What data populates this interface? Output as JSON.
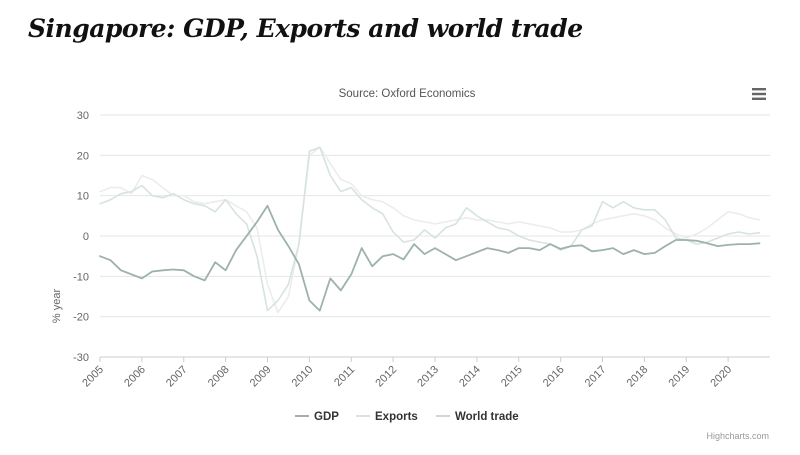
{
  "title": "Singapore: GDP, Exports and world trade",
  "menu_icon": "hamburger-menu-icon",
  "credit": "Highcharts.com",
  "colors": {
    "gdp": "#9db1ad",
    "exports": "#d6e3e1",
    "world_trade": "#ececec",
    "grid": "#e6e6e6",
    "axis_text": "#666666"
  },
  "chart_data": {
    "type": "line",
    "title": "",
    "subtitle": "Source: Oxford Economics",
    "xlabel": "",
    "ylabel": "% year",
    "ylim": [
      -30,
      30
    ],
    "yticks": [
      30,
      20,
      10,
      0,
      -10,
      -20,
      -30
    ],
    "xlim": [
      2005.0,
      2021.0
    ],
    "xticks": [
      "2005",
      "2006",
      "2007",
      "2008",
      "2009",
      "2010",
      "2011",
      "2012",
      "2013",
      "2014",
      "2015",
      "2016",
      "2017",
      "2018",
      "2019",
      "2020"
    ],
    "grid": true,
    "legend_position": "bottom",
    "series": [
      {
        "name": "GDP",
        "color": "#9db1ad",
        "x": [
          2005.0,
          2005.25,
          2005.5,
          2005.75,
          2006.0,
          2006.25,
          2006.5,
          2006.75,
          2007.0,
          2007.25,
          2007.5,
          2007.75,
          2008.0,
          2008.25,
          2008.5,
          2008.75,
          2009.0,
          2009.25,
          2009.5,
          2009.75,
          2010.0,
          2010.25,
          2010.5,
          2010.75,
          2011.0,
          2011.25,
          2011.5,
          2011.75,
          2012.0,
          2012.25,
          2012.5,
          2012.75,
          2013.0,
          2013.25,
          2013.5,
          2013.75,
          2014.0,
          2014.25,
          2014.5,
          2014.75,
          2015.0,
          2015.25,
          2015.5,
          2015.75,
          2016.0,
          2016.25,
          2016.5,
          2016.75,
          2017.0,
          2017.25,
          2017.5,
          2017.75,
          2018.0,
          2018.25,
          2018.5,
          2018.75,
          2019.0,
          2019.25,
          2019.5,
          2019.75,
          2020.0,
          2020.25,
          2020.5,
          2020.75
        ],
        "values": [
          -5,
          -6,
          -8.5,
          -9.5,
          -10.5,
          -8.8,
          -8.5,
          -8.3,
          -8.5,
          -10,
          -11,
          -6.5,
          -8.5,
          -3.5,
          0,
          3.5,
          7.5,
          1.5,
          -2.5,
          -7,
          -16,
          -18.5,
          -10.5,
          -13.5,
          -9.5,
          -3,
          -7.5,
          -5,
          -4.5,
          -5.8,
          -2,
          -4.5,
          -3,
          -4.5,
          -6,
          -5,
          -4,
          -3,
          -3.5,
          -4.2,
          -3,
          -3,
          -3.5,
          -2,
          -3.2,
          -2.5,
          -2.3,
          -3.8,
          -3.5,
          -3,
          -4.5,
          -3.5,
          -4.5,
          -4.2,
          -2.5,
          -1,
          -1,
          -1.2,
          -1.8,
          -2.5,
          -2.2,
          -2,
          -2,
          -1.8
        ]
      },
      {
        "name": "Exports",
        "color": "#d6e3e1",
        "x": [
          2005.0,
          2005.25,
          2005.5,
          2005.75,
          2006.0,
          2006.25,
          2006.5,
          2006.75,
          2007.0,
          2007.25,
          2007.5,
          2007.75,
          2008.0,
          2008.25,
          2008.5,
          2008.75,
          2009.0,
          2009.25,
          2009.5,
          2009.75,
          2010.0,
          2010.25,
          2010.5,
          2010.75,
          2011.0,
          2011.25,
          2011.5,
          2011.75,
          2012.0,
          2012.25,
          2012.5,
          2012.75,
          2013.0,
          2013.25,
          2013.5,
          2013.75,
          2014.0,
          2014.25,
          2014.5,
          2014.75,
          2015.0,
          2015.25,
          2015.5,
          2015.75,
          2016.0,
          2016.25,
          2016.5,
          2016.75,
          2017.0,
          2017.25,
          2017.5,
          2017.75,
          2018.0,
          2018.25,
          2018.5,
          2018.75,
          2019.0,
          2019.25,
          2019.5,
          2019.75,
          2020.0,
          2020.25,
          2020.5,
          2020.75
        ],
        "values": [
          8,
          9,
          10.5,
          11,
          12.5,
          10,
          9.5,
          10.5,
          9,
          8,
          7.5,
          6,
          9,
          5.5,
          3,
          -5,
          -18.5,
          -16,
          -12,
          -2,
          21,
          22,
          15,
          11,
          12,
          9,
          7,
          5.5,
          1,
          -1.5,
          -1,
          1.5,
          -0.5,
          2,
          3,
          7,
          5,
          3.5,
          2,
          1.5,
          0,
          -1,
          -1.5,
          -2,
          -3.5,
          -2.5,
          1.5,
          2.5,
          8.5,
          7,
          8.5,
          7,
          6.5,
          6.5,
          4,
          -0.5,
          -1,
          -2,
          -1.5,
          -0.5,
          0.5,
          1,
          0.5,
          0.8
        ]
      },
      {
        "name": "World trade",
        "color": "#ececec",
        "x": [
          2005.0,
          2005.25,
          2005.5,
          2005.75,
          2006.0,
          2006.25,
          2006.5,
          2006.75,
          2007.0,
          2007.25,
          2007.5,
          2007.75,
          2008.0,
          2008.25,
          2008.5,
          2008.75,
          2009.0,
          2009.25,
          2009.5,
          2009.75,
          2010.0,
          2010.25,
          2010.5,
          2010.75,
          2011.0,
          2011.25,
          2011.5,
          2011.75,
          2012.0,
          2012.25,
          2012.5,
          2012.75,
          2013.0,
          2013.25,
          2013.5,
          2013.75,
          2014.0,
          2014.25,
          2014.5,
          2014.75,
          2015.0,
          2015.25,
          2015.5,
          2015.75,
          2016.0,
          2016.25,
          2016.5,
          2016.75,
          2017.0,
          2017.25,
          2017.5,
          2017.75,
          2018.0,
          2018.25,
          2018.5,
          2018.75,
          2019.0,
          2019.25,
          2019.5,
          2019.75,
          2020.0,
          2020.25,
          2020.5,
          2020.75
        ],
        "values": [
          11,
          12,
          12,
          10.5,
          15,
          14,
          12,
          10,
          10,
          8.5,
          8,
          8.5,
          9,
          7.5,
          6,
          2,
          -12,
          -19,
          -15,
          -2,
          20,
          22,
          18,
          14,
          13,
          10,
          9,
          8.5,
          7,
          5,
          4,
          3.5,
          3,
          3.5,
          4,
          4.5,
          4,
          4,
          3.5,
          3,
          3.5,
          3,
          2.5,
          2,
          1,
          1,
          1.5,
          3,
          4,
          4.5,
          5,
          5.5,
          5,
          4,
          2,
          0.5,
          -0.5,
          0.5,
          2,
          4,
          6,
          5.5,
          4.5,
          4
        ]
      }
    ]
  }
}
